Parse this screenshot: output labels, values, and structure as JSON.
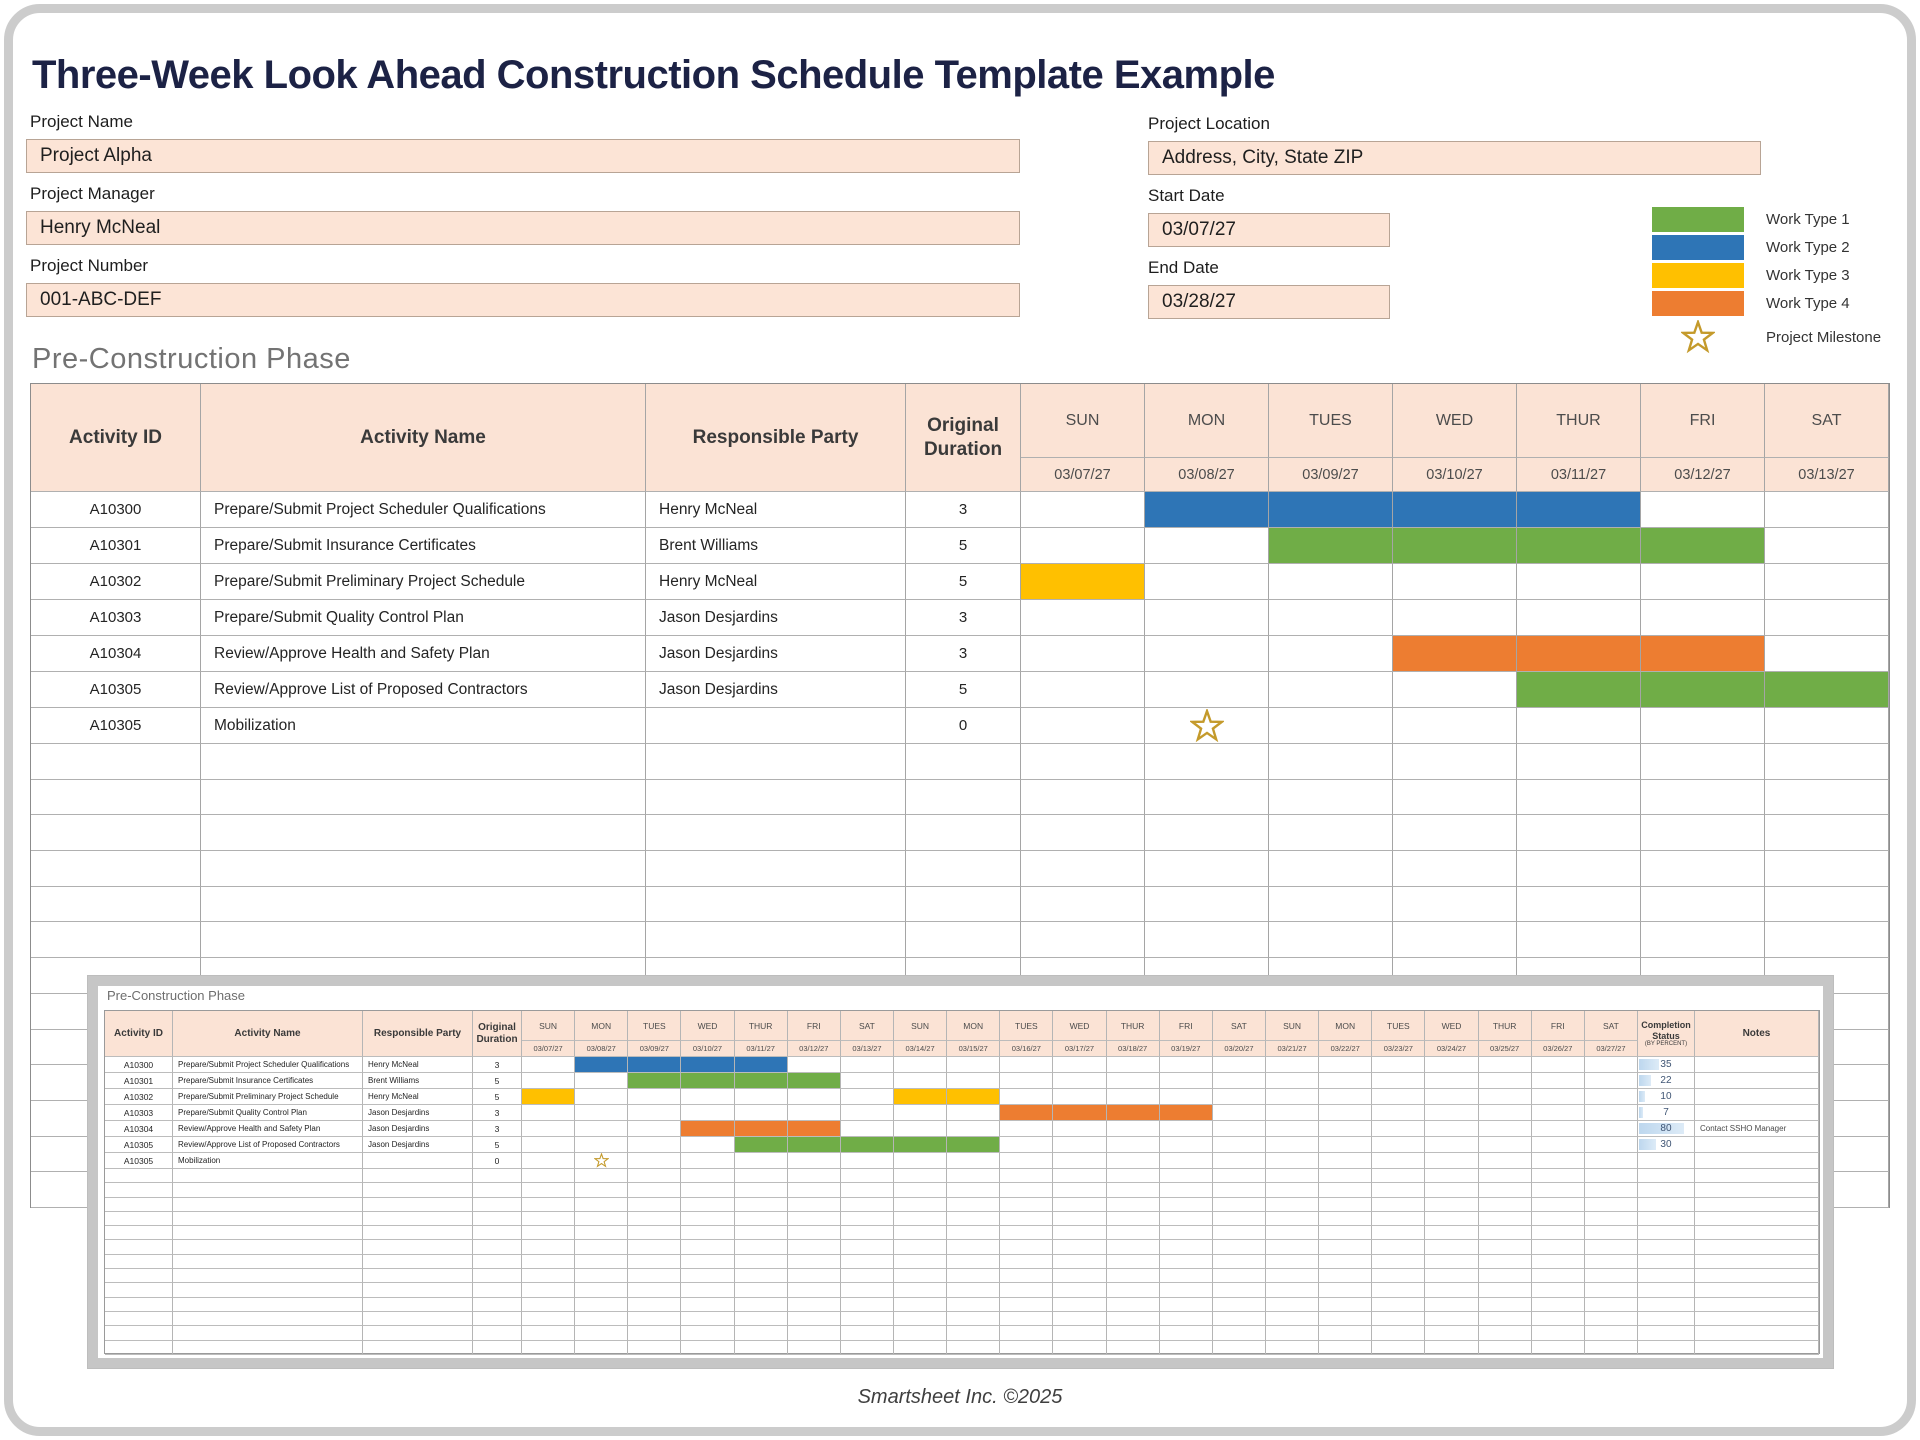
{
  "page": {
    "title": "Three-Week Look Ahead Construction Schedule Template Example",
    "phase_title": "Pre-Construction Phase",
    "footer": "Smartsheet Inc. ©2025"
  },
  "form": {
    "project_name": {
      "label": "Project Name",
      "value": "Project Alpha"
    },
    "project_manager": {
      "label": "Project Manager",
      "value": "Henry McNeal"
    },
    "project_number": {
      "label": "Project Number",
      "value": "001-ABC-DEF"
    },
    "project_location": {
      "label": "Project Location",
      "value": "Address, City, State ZIP"
    },
    "start_date": {
      "label": "Start Date",
      "value": "03/07/27"
    },
    "end_date": {
      "label": "End Date",
      "value": "03/28/27"
    }
  },
  "legend": {
    "items": [
      {
        "label": "Work Type 1",
        "color_key": "work_type_1"
      },
      {
        "label": "Work Type 2",
        "color_key": "work_type_2"
      },
      {
        "label": "Work Type 3",
        "color_key": "work_type_3"
      },
      {
        "label": "Work Type 4",
        "color_key": "work_type_4"
      }
    ],
    "milestone_label": "Project Milestone"
  },
  "colors": {
    "work_type_1": "#70AD47",
    "work_type_2": "#2E75B6",
    "work_type_3": "#FFC000",
    "work_type_4": "#ED7D31",
    "milestone": "#C49A2B",
    "header_fill": "#FBE3D5",
    "completion_bar": "#BDD7EE"
  },
  "column_headers": [
    "Activity ID",
    "Activity Name",
    "Responsible Party",
    "Original Duration"
  ],
  "main_table": {
    "days": [
      "SUN",
      "MON",
      "TUES",
      "WED",
      "THUR",
      "FRI",
      "SAT"
    ],
    "dates": [
      "03/07/27",
      "03/08/27",
      "03/09/27",
      "03/10/27",
      "03/11/27",
      "03/12/27",
      "03/13/27"
    ],
    "rows": [
      {
        "id": "A10300",
        "name": "Prepare/Submit Project Scheduler Qualifications",
        "party": "Henry McNeal",
        "duration": "3",
        "bars": [
          {
            "start": 1,
            "span": 4,
            "color_key": "work_type_2"
          }
        ]
      },
      {
        "id": "A10301",
        "name": "Prepare/Submit Insurance Certificates",
        "party": "Brent Williams",
        "duration": "5",
        "bars": [
          {
            "start": 2,
            "span": 4,
            "color_key": "work_type_1"
          }
        ]
      },
      {
        "id": "A10302",
        "name": "Prepare/Submit Preliminary Project Schedule",
        "party": "Henry McNeal",
        "duration": "5",
        "bars": [
          {
            "start": 0,
            "span": 1,
            "color_key": "work_type_3"
          }
        ]
      },
      {
        "id": "A10303",
        "name": "Prepare/Submit Quality Control Plan",
        "party": "Jason Desjardins",
        "duration": "3",
        "bars": []
      },
      {
        "id": "A10304",
        "name": "Review/Approve Health and Safety Plan",
        "party": "Jason Desjardins",
        "duration": "3",
        "bars": [
          {
            "start": 3,
            "span": 3,
            "color_key": "work_type_4"
          }
        ]
      },
      {
        "id": "A10305",
        "name": "Review/Approve List of Proposed Contractors",
        "party": "Jason Desjardins",
        "duration": "5",
        "bars": [
          {
            "start": 4,
            "span": 3,
            "color_key": "work_type_1"
          }
        ]
      },
      {
        "id": "A10305",
        "name": "Mobilization",
        "party": "",
        "duration": "0",
        "bars": [],
        "milestone_day": 1
      }
    ],
    "empty_rows": 13
  },
  "inset": {
    "phase_title": "Pre-Construction Phase",
    "completion_header": "Completion Status",
    "completion_sub": "(BY PERCENT)",
    "notes_header": "Notes",
    "days": [
      "SUN",
      "MON",
      "TUES",
      "WED",
      "THUR",
      "FRI",
      "SAT",
      "SUN",
      "MON",
      "TUES",
      "WED",
      "THUR",
      "FRI",
      "SAT",
      "SUN",
      "MON",
      "TUES",
      "WED",
      "THUR",
      "FRI",
      "SAT"
    ],
    "dates": [
      "03/07/27",
      "03/08/27",
      "03/09/27",
      "03/10/27",
      "03/11/27",
      "03/12/27",
      "03/13/27",
      "03/14/27",
      "03/15/27",
      "03/16/27",
      "03/17/27",
      "03/18/27",
      "03/19/27",
      "03/20/27",
      "03/21/27",
      "03/22/27",
      "03/23/27",
      "03/24/27",
      "03/25/27",
      "03/26/27",
      "03/27/27"
    ],
    "rows": [
      {
        "id": "A10300",
        "name": "Prepare/Submit Project Scheduler Qualifications",
        "party": "Henry McNeal",
        "duration": "3",
        "completion": "35",
        "notes": "",
        "bars": [
          {
            "start": 1,
            "span": 4,
            "color_key": "work_type_2"
          }
        ]
      },
      {
        "id": "A10301",
        "name": "Prepare/Submit Insurance Certificates",
        "party": "Brent Williams",
        "duration": "5",
        "completion": "22",
        "notes": "",
        "bars": [
          {
            "start": 2,
            "span": 4,
            "color_key": "work_type_1"
          }
        ]
      },
      {
        "id": "A10302",
        "name": "Prepare/Submit Preliminary Project Schedule",
        "party": "Henry McNeal",
        "duration": "5",
        "completion": "10",
        "notes": "",
        "bars": [
          {
            "start": 0,
            "span": 1,
            "color_key": "work_type_3"
          },
          {
            "start": 7,
            "span": 2,
            "color_key": "work_type_3"
          }
        ]
      },
      {
        "id": "A10303",
        "name": "Prepare/Submit Quality Control Plan",
        "party": "Jason Desjardins",
        "duration": "3",
        "completion": "7",
        "notes": "",
        "bars": [
          {
            "start": 9,
            "span": 4,
            "color_key": "work_type_4"
          }
        ]
      },
      {
        "id": "A10304",
        "name": "Review/Approve Health and Safety Plan",
        "party": "Jason Desjardins",
        "duration": "3",
        "completion": "80",
        "notes": "Contact SSHO Manager",
        "bars": [
          {
            "start": 3,
            "span": 3,
            "color_key": "work_type_4"
          }
        ]
      },
      {
        "id": "A10305",
        "name": "Review/Approve List of Proposed Contractors",
        "party": "Jason Desjardins",
        "duration": "5",
        "completion": "30",
        "notes": "",
        "bars": [
          {
            "start": 4,
            "span": 5,
            "color_key": "work_type_1"
          }
        ]
      },
      {
        "id": "A10305",
        "name": "Mobilization",
        "party": "",
        "duration": "0",
        "completion": "",
        "notes": "",
        "bars": [],
        "milestone_day": 1
      }
    ],
    "empty_rows": 13
  }
}
